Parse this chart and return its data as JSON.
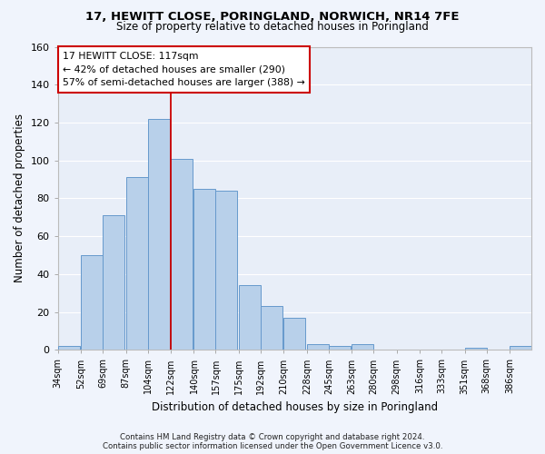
{
  "title": "17, HEWITT CLOSE, PORINGLAND, NORWICH, NR14 7FE",
  "subtitle": "Size of property relative to detached houses in Poringland",
  "xlabel": "Distribution of detached houses by size in Poringland",
  "ylabel": "Number of detached properties",
  "footer_line1": "Contains HM Land Registry data © Crown copyright and database right 2024.",
  "footer_line2": "Contains public sector information licensed under the Open Government Licence v3.0.",
  "bar_labels": [
    "34sqm",
    "52sqm",
    "69sqm",
    "87sqm",
    "104sqm",
    "122sqm",
    "140sqm",
    "157sqm",
    "175sqm",
    "192sqm",
    "210sqm",
    "228sqm",
    "245sqm",
    "263sqm",
    "280sqm",
    "298sqm",
    "316sqm",
    "333sqm",
    "351sqm",
    "368sqm",
    "386sqm"
  ],
  "bar_values": [
    2,
    50,
    71,
    91,
    122,
    101,
    85,
    84,
    34,
    23,
    17,
    3,
    2,
    3,
    0,
    0,
    0,
    0,
    1,
    0,
    2
  ],
  "bar_color": "#b8d0ea",
  "bar_edge_color": "#6699cc",
  "background_color": "#e8eef8",
  "grid_color": "#ffffff",
  "property_line_color": "#cc0000",
  "annotation_text": "17 HEWITT CLOSE: 117sqm\n← 42% of detached houses are smaller (290)\n57% of semi-detached houses are larger (388) →",
  "annotation_box_color": "#ffffff",
  "annotation_box_edge_color": "#cc0000",
  "ylim": [
    0,
    160
  ],
  "yticks": [
    0,
    20,
    40,
    60,
    80,
    100,
    120,
    140,
    160
  ],
  "bin_starts": [
    34,
    52,
    69,
    87,
    104,
    122,
    140,
    157,
    175,
    192,
    210,
    228,
    245,
    263,
    280,
    298,
    316,
    333,
    351,
    368,
    386
  ],
  "bin_width": 17,
  "xlim_right": 403,
  "property_line_x": 122
}
